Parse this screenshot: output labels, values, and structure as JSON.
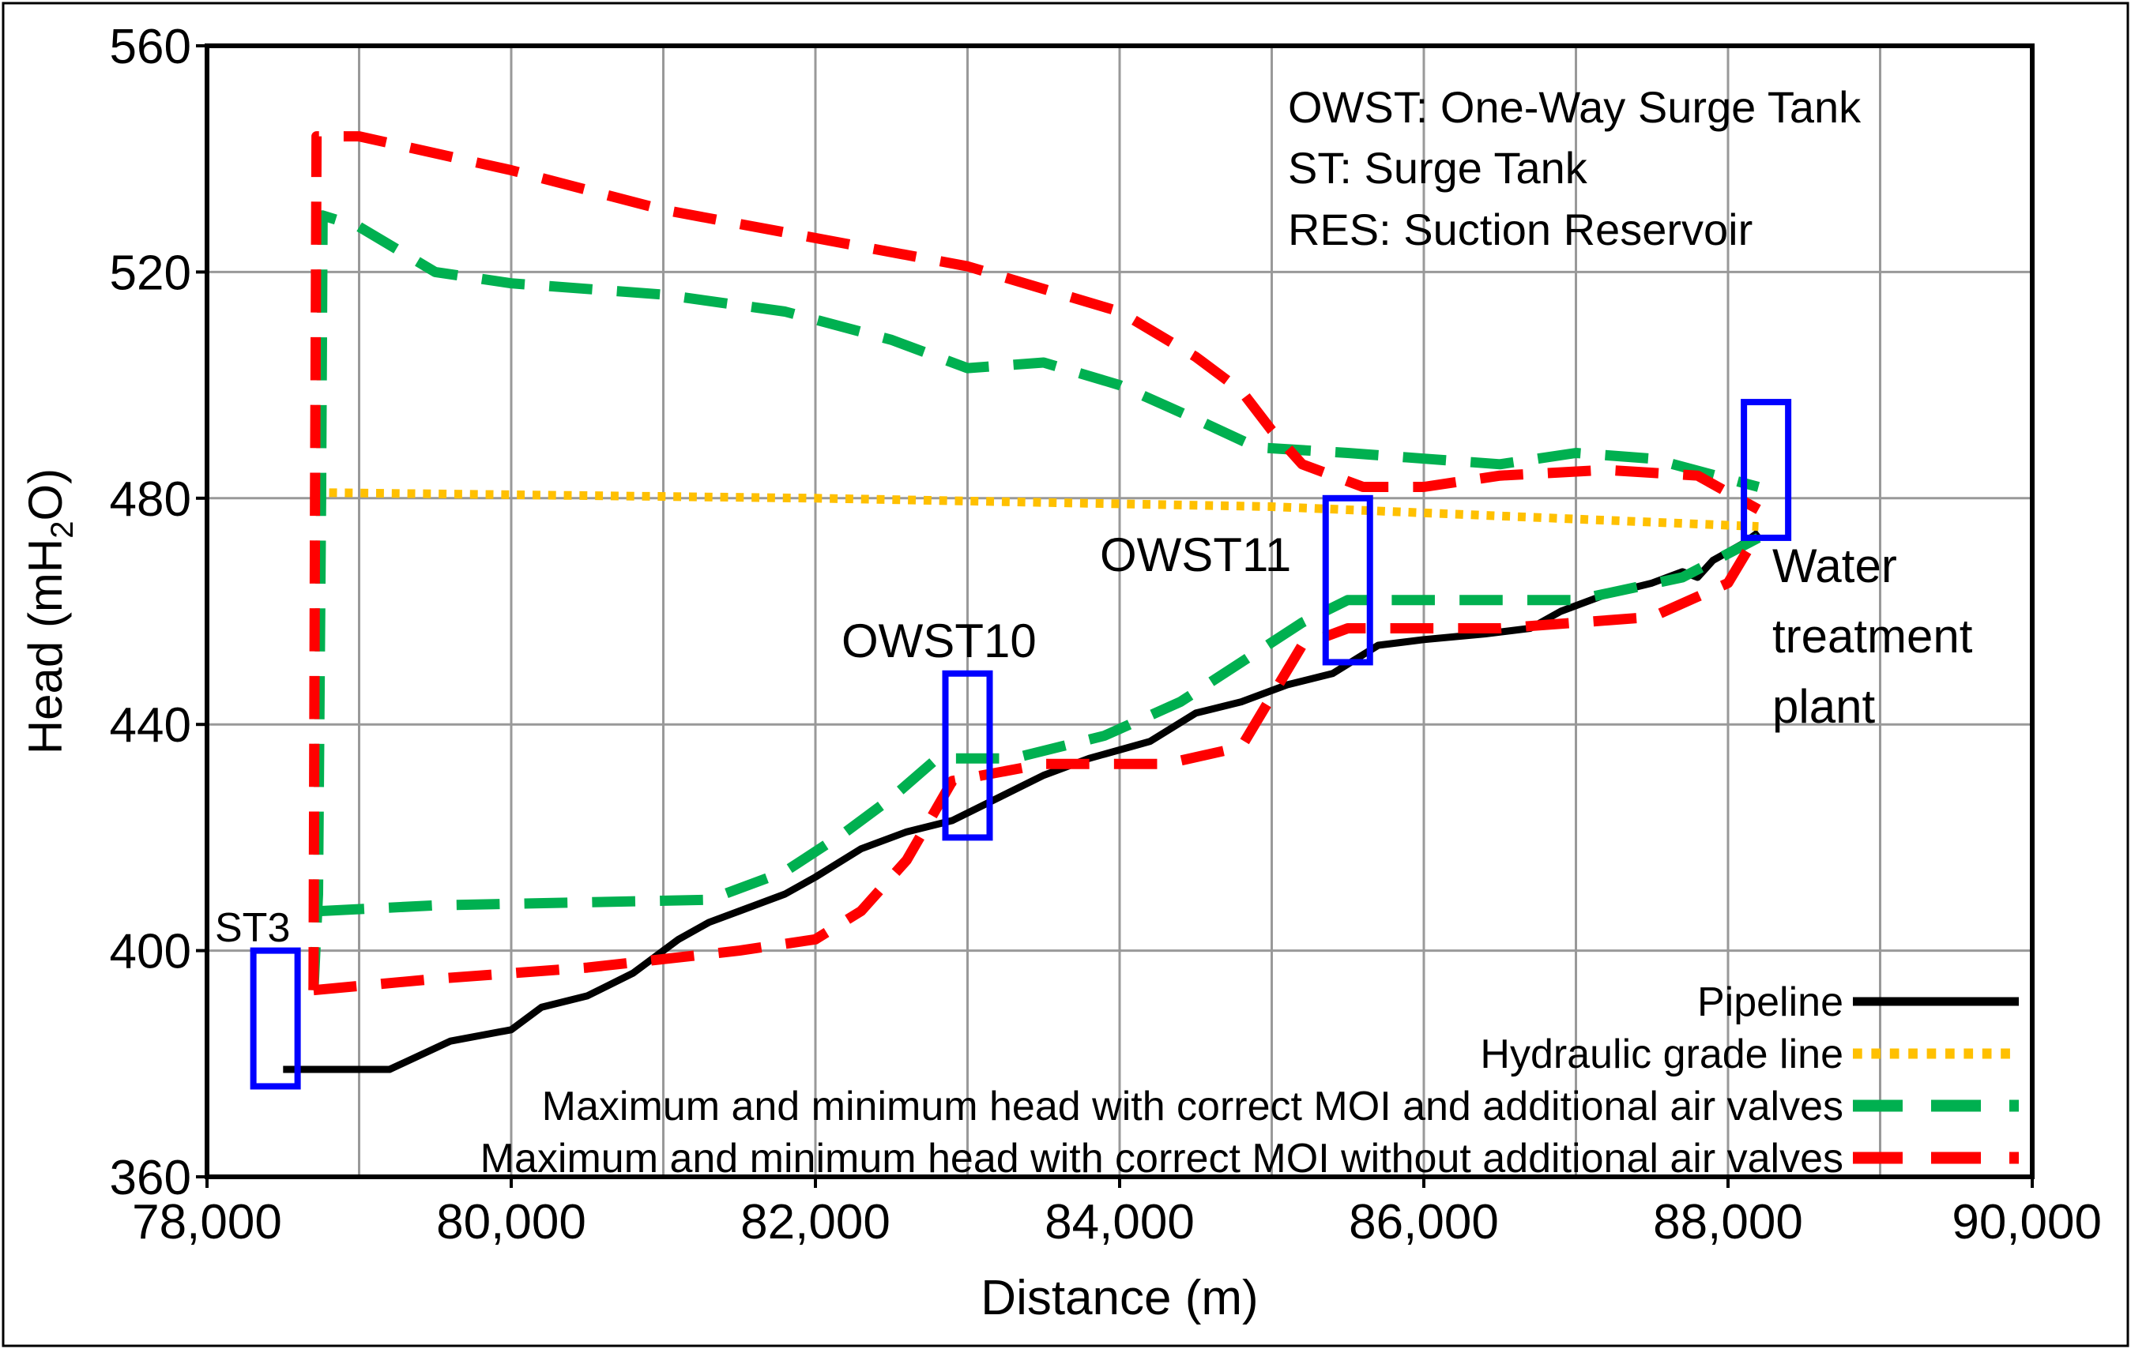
{
  "chart_data": {
    "type": "line",
    "xlabel": "Distance (m)",
    "ylabel": "Head (mH",
    "ylabel_sub": "2",
    "ylabel_end": "O)",
    "xlim": [
      78000,
      90000
    ],
    "ylim": [
      360,
      560
    ],
    "x_ticks": [
      {
        "value": 78000,
        "label": "78,000"
      },
      {
        "value": 80000,
        "label": "80,000"
      },
      {
        "value": 82000,
        "label": "82,000"
      },
      {
        "value": 84000,
        "label": "84,000"
      },
      {
        "value": 86000,
        "label": "86,000"
      },
      {
        "value": 88000,
        "label": "88,000"
      },
      {
        "value": 90000,
        "label": "90,000"
      }
    ],
    "y_ticks": [
      {
        "value": 360,
        "label": "360"
      },
      {
        "value": 400,
        "label": "400"
      },
      {
        "value": 440,
        "label": "440"
      },
      {
        "value": 480,
        "label": "480"
      },
      {
        "value": 520,
        "label": "520"
      },
      {
        "value": 560,
        "label": "560"
      }
    ],
    "grid": true,
    "legend_position": "bottom-right",
    "info_lines": [
      "OWST: One-Way Surge Tank",
      "ST: Surge Tank",
      "RES: Suction Reservoir"
    ],
    "series": [
      {
        "id": "pipeline",
        "name": "Pipeline",
        "color": "#000000",
        "style": "solid",
        "points": [
          [
            78500,
            379
          ],
          [
            78700,
            379
          ],
          [
            79200,
            379
          ],
          [
            79600,
            384
          ],
          [
            80000,
            386
          ],
          [
            80200,
            390
          ],
          [
            80500,
            392
          ],
          [
            80800,
            396
          ],
          [
            81100,
            402
          ],
          [
            81300,
            405
          ],
          [
            81500,
            407
          ],
          [
            81800,
            410
          ],
          [
            82000,
            413
          ],
          [
            82300,
            418
          ],
          [
            82600,
            421
          ],
          [
            82900,
            423
          ],
          [
            83200,
            427
          ],
          [
            83500,
            431
          ],
          [
            83800,
            434
          ],
          [
            84200,
            437
          ],
          [
            84500,
            442
          ],
          [
            84800,
            444
          ],
          [
            85100,
            447
          ],
          [
            85400,
            449
          ],
          [
            85700,
            454
          ],
          [
            86000,
            455
          ],
          [
            86400,
            456
          ],
          [
            86700,
            457
          ],
          [
            86900,
            460
          ],
          [
            87200,
            463
          ],
          [
            87500,
            465
          ],
          [
            87700,
            467
          ],
          [
            87800,
            466
          ],
          [
            87900,
            469
          ],
          [
            88100,
            472
          ],
          [
            88200,
            474
          ]
        ]
      },
      {
        "id": "hgl",
        "name": "Hydraulic grade line",
        "color": "#FFC000",
        "style": "dotted",
        "points": [
          [
            78700,
            481
          ],
          [
            82000,
            480
          ],
          [
            85000,
            478.5
          ],
          [
            88200,
            475
          ]
        ]
      },
      {
        "id": "green_max",
        "name": "Maximum and minimum head with correct MOI and additional air valves",
        "color": "#00B050",
        "style": "dashed",
        "points": [
          [
            78700,
            393
          ],
          [
            78730,
            410
          ],
          [
            78750,
            480
          ],
          [
            78760,
            530
          ],
          [
            79000,
            528
          ],
          [
            79500,
            520
          ],
          [
            80000,
            518
          ],
          [
            81000,
            516
          ],
          [
            81800,
            513
          ],
          [
            82500,
            508
          ],
          [
            83000,
            503
          ],
          [
            83500,
            504
          ],
          [
            84000,
            500
          ],
          [
            84500,
            494
          ],
          [
            84900,
            489
          ],
          [
            85500,
            488
          ],
          [
            86000,
            487
          ],
          [
            86500,
            486
          ],
          [
            87000,
            488
          ],
          [
            87500,
            487
          ],
          [
            88200,
            482
          ]
        ]
      },
      {
        "id": "green_min",
        "name": "Maximum and minimum head with correct MOI and additional air valves (min)",
        "color": "#00B050",
        "style": "dashed",
        "points": [
          [
            78750,
            407
          ],
          [
            79500,
            408
          ],
          [
            81300,
            409
          ],
          [
            81800,
            414
          ],
          [
            82200,
            421
          ],
          [
            82500,
            427
          ],
          [
            82800,
            434
          ],
          [
            83300,
            434
          ],
          [
            83900,
            438
          ],
          [
            84400,
            444
          ],
          [
            84800,
            451
          ],
          [
            85200,
            458
          ],
          [
            85500,
            462
          ],
          [
            86000,
            462
          ],
          [
            87000,
            462
          ],
          [
            87700,
            466
          ],
          [
            88200,
            473
          ]
        ]
      },
      {
        "id": "red_max",
        "name": "Maximum and minimum head with correct MOI without additional air valves",
        "color": "#FF0000",
        "style": "dashed",
        "points": [
          [
            78700,
            393
          ],
          [
            78710,
            480
          ],
          [
            78720,
            544
          ],
          [
            79000,
            544
          ],
          [
            80000,
            538
          ],
          [
            81000,
            531
          ],
          [
            82000,
            526
          ],
          [
            83000,
            521
          ],
          [
            84000,
            513
          ],
          [
            84500,
            505
          ],
          [
            84800,
            499
          ],
          [
            85000,
            492
          ],
          [
            85200,
            486
          ],
          [
            85600,
            482
          ],
          [
            86000,
            482
          ],
          [
            86500,
            484
          ],
          [
            87200,
            485
          ],
          [
            87800,
            484
          ],
          [
            88200,
            478
          ]
        ]
      },
      {
        "id": "red_min",
        "name": "Maximum and minimum head with correct MOI without additional air valves (min)",
        "color": "#FF0000",
        "style": "dashed",
        "points": [
          [
            78700,
            393
          ],
          [
            79500,
            395
          ],
          [
            80500,
            397
          ],
          [
            81500,
            400
          ],
          [
            82000,
            402
          ],
          [
            82300,
            407
          ],
          [
            82600,
            416
          ],
          [
            82900,
            430
          ],
          [
            83500,
            433
          ],
          [
            84300,
            433
          ],
          [
            84800,
            436
          ],
          [
            85000,
            445
          ],
          [
            85200,
            454
          ],
          [
            85500,
            457
          ],
          [
            86500,
            457
          ],
          [
            87500,
            459
          ],
          [
            88000,
            465
          ],
          [
            88200,
            474
          ]
        ]
      }
    ],
    "legend": [
      {
        "label": "Pipeline",
        "color": "#000000",
        "style": "solid"
      },
      {
        "label": "Hydraulic grade line",
        "color": "#FFC000",
        "style": "dotted"
      },
      {
        "label": "Maximum and minimum head with correct MOI and additional air valves",
        "color": "#00B050",
        "style": "dashed"
      },
      {
        "label": "Maximum and minimum head with correct MOI without additional air valves",
        "color": "#FF0000",
        "style": "dashed"
      }
    ],
    "tanks": [
      {
        "id": "st3",
        "label": "ST3",
        "x": 78450,
        "y_bottom": 376,
        "y_top": 400
      },
      {
        "id": "owst10",
        "label": "OWST10",
        "x": 83000,
        "y_bottom": 420,
        "y_top": 449
      },
      {
        "id": "owst11",
        "label": "OWST11",
        "x": 85500,
        "y_bottom": 451,
        "y_top": 480
      },
      {
        "id": "plant",
        "label": "",
        "x": 88250,
        "y_bottom": 473,
        "y_top": 497
      }
    ],
    "annotations": {
      "plant_label_lines": [
        "Water",
        "treatment",
        "plant"
      ],
      "st3_label": "ST3",
      "owst10_label": "OWST10",
      "owst11_label": "OWST11"
    },
    "colors": {
      "tank_box": "#0000FF",
      "grid": "#999999",
      "axis": "#000000"
    }
  }
}
